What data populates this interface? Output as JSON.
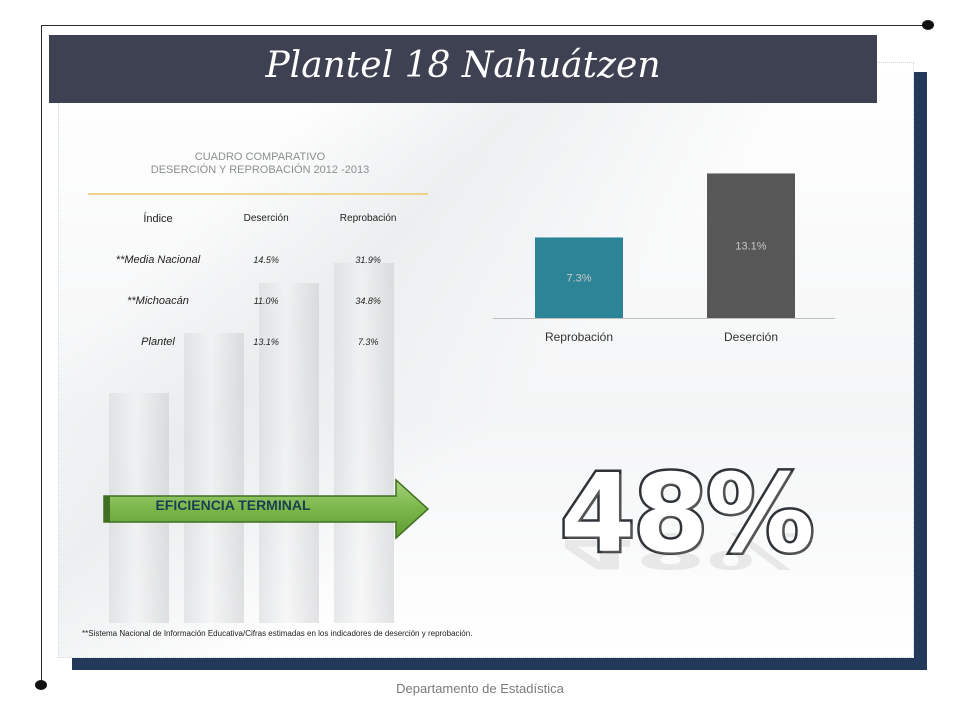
{
  "title": "Plantel 18 Nahuátzen",
  "table": {
    "heading_line1": "CUADRO COMPARATIVO",
    "heading_line2": "DESERCIÓN Y REPROBACIÓN  2012 -2013",
    "col_index": "Índice",
    "col_desercion": "Deserción",
    "col_reprobacion": "Reprobación",
    "rows": [
      {
        "label": "**Media Nacional",
        "desercion": "14.5%",
        "reprobacion": "31.9%"
      },
      {
        "label": "**Michoacán",
        "desercion": "11.0%",
        "reprobacion": "34.8%"
      },
      {
        "label": "Plantel",
        "desercion": "13.1%",
        "reprobacion": "7.3%"
      }
    ]
  },
  "chart_data": {
    "type": "bar",
    "categories": [
      "Reprobación",
      "Deserción"
    ],
    "values": [
      7.3,
      13.1
    ],
    "data_labels": [
      "7.3%",
      "13.1%"
    ],
    "colors": [
      "#2e8497",
      "#575757"
    ],
    "ylim": [
      0,
      14.5
    ]
  },
  "efficiency": {
    "label": "EFICIENCIA TERMINAL",
    "value": "48%"
  },
  "footnote": "**Sistema Nacional de Información Educativa/Cifras estimadas en los indicadores de deserción y reprobación.",
  "footer": "Departamento de Estadística"
}
